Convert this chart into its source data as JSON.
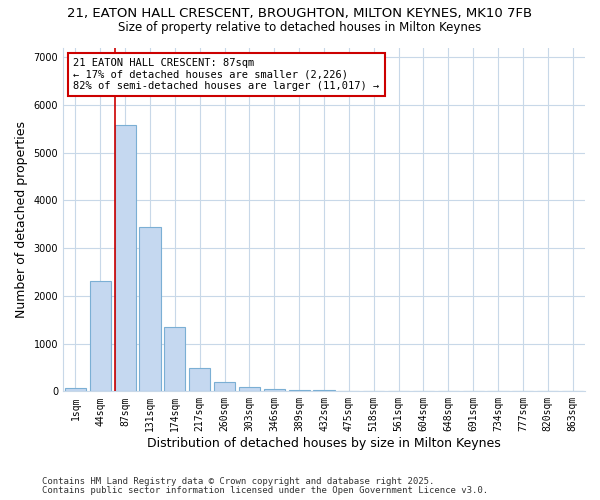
{
  "title_line1": "21, EATON HALL CRESCENT, BROUGHTON, MILTON KEYNES, MK10 7FB",
  "title_line2": "Size of property relative to detached houses in Milton Keynes",
  "xlabel": "Distribution of detached houses by size in Milton Keynes",
  "ylabel": "Number of detached properties",
  "categories": [
    "1sqm",
    "44sqm",
    "87sqm",
    "131sqm",
    "174sqm",
    "217sqm",
    "260sqm",
    "303sqm",
    "346sqm",
    "389sqm",
    "432sqm",
    "475sqm",
    "518sqm",
    "561sqm",
    "604sqm",
    "648sqm",
    "691sqm",
    "734sqm",
    "777sqm",
    "820sqm",
    "863sqm"
  ],
  "values": [
    80,
    2300,
    5570,
    3450,
    1350,
    480,
    185,
    100,
    55,
    35,
    18,
    0,
    0,
    0,
    0,
    0,
    0,
    0,
    0,
    0,
    0
  ],
  "bar_color": "#c5d8f0",
  "bar_edge_color": "#7bafd4",
  "vline_index": 2,
  "vline_color": "#cc0000",
  "annotation_text": "21 EATON HALL CRESCENT: 87sqm\n← 17% of detached houses are smaller (2,226)\n82% of semi-detached houses are larger (11,017) →",
  "annotation_box_edgecolor": "#cc0000",
  "annotation_box_facecolor": "#ffffff",
  "ylim": [
    0,
    7200
  ],
  "yticks": [
    0,
    1000,
    2000,
    3000,
    4000,
    5000,
    6000,
    7000
  ],
  "fig_bg_color": "#ffffff",
  "plot_bg_color": "#ffffff",
  "grid_color": "#c8d8e8",
  "footer_line1": "Contains HM Land Registry data © Crown copyright and database right 2025.",
  "footer_line2": "Contains public sector information licensed under the Open Government Licence v3.0.",
  "title_fontsize": 9.5,
  "subtitle_fontsize": 8.5,
  "axis_label_fontsize": 9,
  "tick_fontsize": 7,
  "annotation_fontsize": 7.5,
  "footer_fontsize": 6.5
}
